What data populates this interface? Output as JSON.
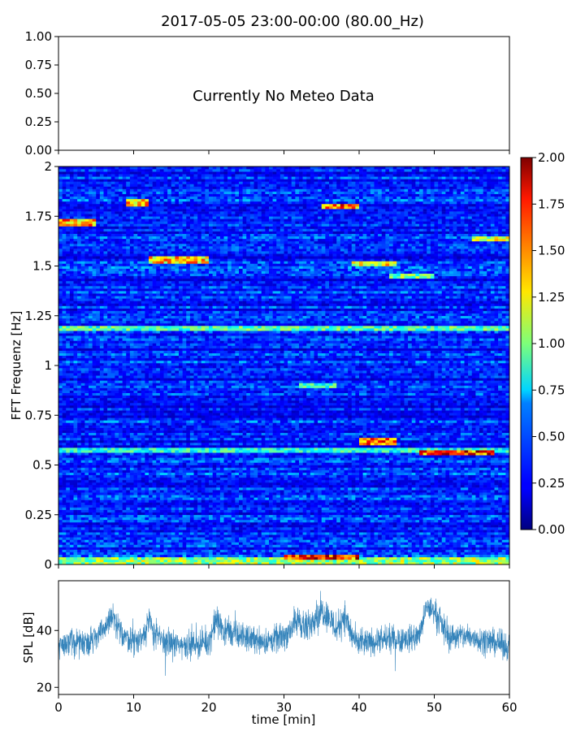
{
  "figure": {
    "title": "2017-05-05 23:00-00:00 (80.00_Hz)"
  },
  "chart_data": [
    {
      "type": "line",
      "panel": "meteo",
      "title": "2017-05-05 23:00-00:00 (80.00_Hz)",
      "annotation": "Currently No Meteo Data",
      "ylim": [
        0,
        1
      ],
      "yticks": [
        "0.00",
        "0.25",
        "0.50",
        "0.75",
        "1.00"
      ],
      "xlabel": "",
      "ylabel": "",
      "series": []
    },
    {
      "type": "heatmap",
      "panel": "spectrogram",
      "ylabel": "FFT Frequenz [Hz]",
      "xlim": [
        0,
        60
      ],
      "ylim": [
        0,
        2
      ],
      "yticks": [
        "0",
        "0.25",
        "0.5",
        "0.75",
        "1",
        "1.25",
        "1.5",
        "1.75",
        "2"
      ],
      "colormap": "jet",
      "colorbar": {
        "range": [
          0,
          2
        ],
        "ticks": [
          "0.00",
          "0.25",
          "0.50",
          "0.75",
          "1.00",
          "1.25",
          "1.50",
          "1.75",
          "2.00"
        ]
      },
      "grid_resolution": {
        "time_bins": 120,
        "freq_bins": 160
      },
      "base_level": 0.3,
      "bands": [
        {
          "freq": 0.575,
          "time_range": [
            0,
            60
          ],
          "value": 0.85
        },
        {
          "freq": 0.62,
          "time_range": [
            40,
            45
          ],
          "value": 1.6
        },
        {
          "freq": 0.56,
          "time_range": [
            48,
            58
          ],
          "value": 1.7
        },
        {
          "freq": 1.19,
          "time_range": [
            0,
            60
          ],
          "value": 0.95
        },
        {
          "freq": 1.72,
          "time_range": [
            0,
            5
          ],
          "value": 1.5
        },
        {
          "freq": 1.82,
          "time_range": [
            9,
            12
          ],
          "value": 1.5
        },
        {
          "freq": 1.8,
          "time_range": [
            35,
            40
          ],
          "value": 1.6
        },
        {
          "freq": 1.53,
          "time_range": [
            12,
            20
          ],
          "value": 1.4
        },
        {
          "freq": 1.51,
          "time_range": [
            39,
            45
          ],
          "value": 1.3
        },
        {
          "freq": 1.45,
          "time_range": [
            44,
            50
          ],
          "value": 1.0
        },
        {
          "freq": 1.64,
          "time_range": [
            55,
            60
          ],
          "value": 1.2
        },
        {
          "freq": 0.02,
          "time_range": [
            0,
            60
          ],
          "value": 1.1
        },
        {
          "freq": 0.04,
          "time_range": [
            30,
            40
          ],
          "value": 1.7
        },
        {
          "freq": 0.9,
          "time_range": [
            32,
            37
          ],
          "value": 0.9
        }
      ]
    },
    {
      "type": "line",
      "panel": "spl",
      "xlabel": "time [min]",
      "ylabel": "SPL [dB]",
      "xlim": [
        0,
        60
      ],
      "ylim": [
        17.5,
        57.5
      ],
      "xticks": [
        "0",
        "10",
        "20",
        "30",
        "40",
        "50",
        "60"
      ],
      "yticks": [
        "20",
        "40"
      ],
      "color": "#1f77b4",
      "series": [
        {
          "name": "SPL",
          "x": [
            0,
            2,
            4,
            5,
            6,
            7,
            8,
            9,
            10,
            11,
            12,
            13,
            14,
            16,
            18,
            20,
            21,
            22,
            24,
            26,
            28,
            30,
            31,
            32,
            33,
            34,
            35,
            36,
            37,
            38,
            39,
            40,
            42,
            44,
            46,
            48,
            49,
            50,
            51,
            52,
            54,
            56,
            58,
            60
          ],
          "center": [
            35,
            36,
            36,
            38,
            40,
            45,
            40,
            38,
            36,
            37,
            43,
            38,
            36,
            35,
            35,
            36,
            44,
            40,
            38,
            37,
            36,
            38,
            41,
            44,
            40,
            45,
            47,
            45,
            40,
            46,
            38,
            35,
            36,
            37,
            37,
            38,
            48,
            47,
            42,
            38,
            38,
            37,
            36,
            34
          ],
          "spread": [
            7,
            7,
            7,
            7,
            7,
            8,
            7,
            7,
            8,
            8,
            8,
            8,
            8,
            7,
            7,
            7,
            8,
            8,
            7,
            7,
            7,
            7,
            8,
            8,
            9,
            8,
            8,
            8,
            8,
            8,
            8,
            7,
            7,
            7,
            7,
            7,
            6,
            7,
            7,
            7,
            7,
            7,
            7,
            7
          ]
        }
      ]
    }
  ]
}
